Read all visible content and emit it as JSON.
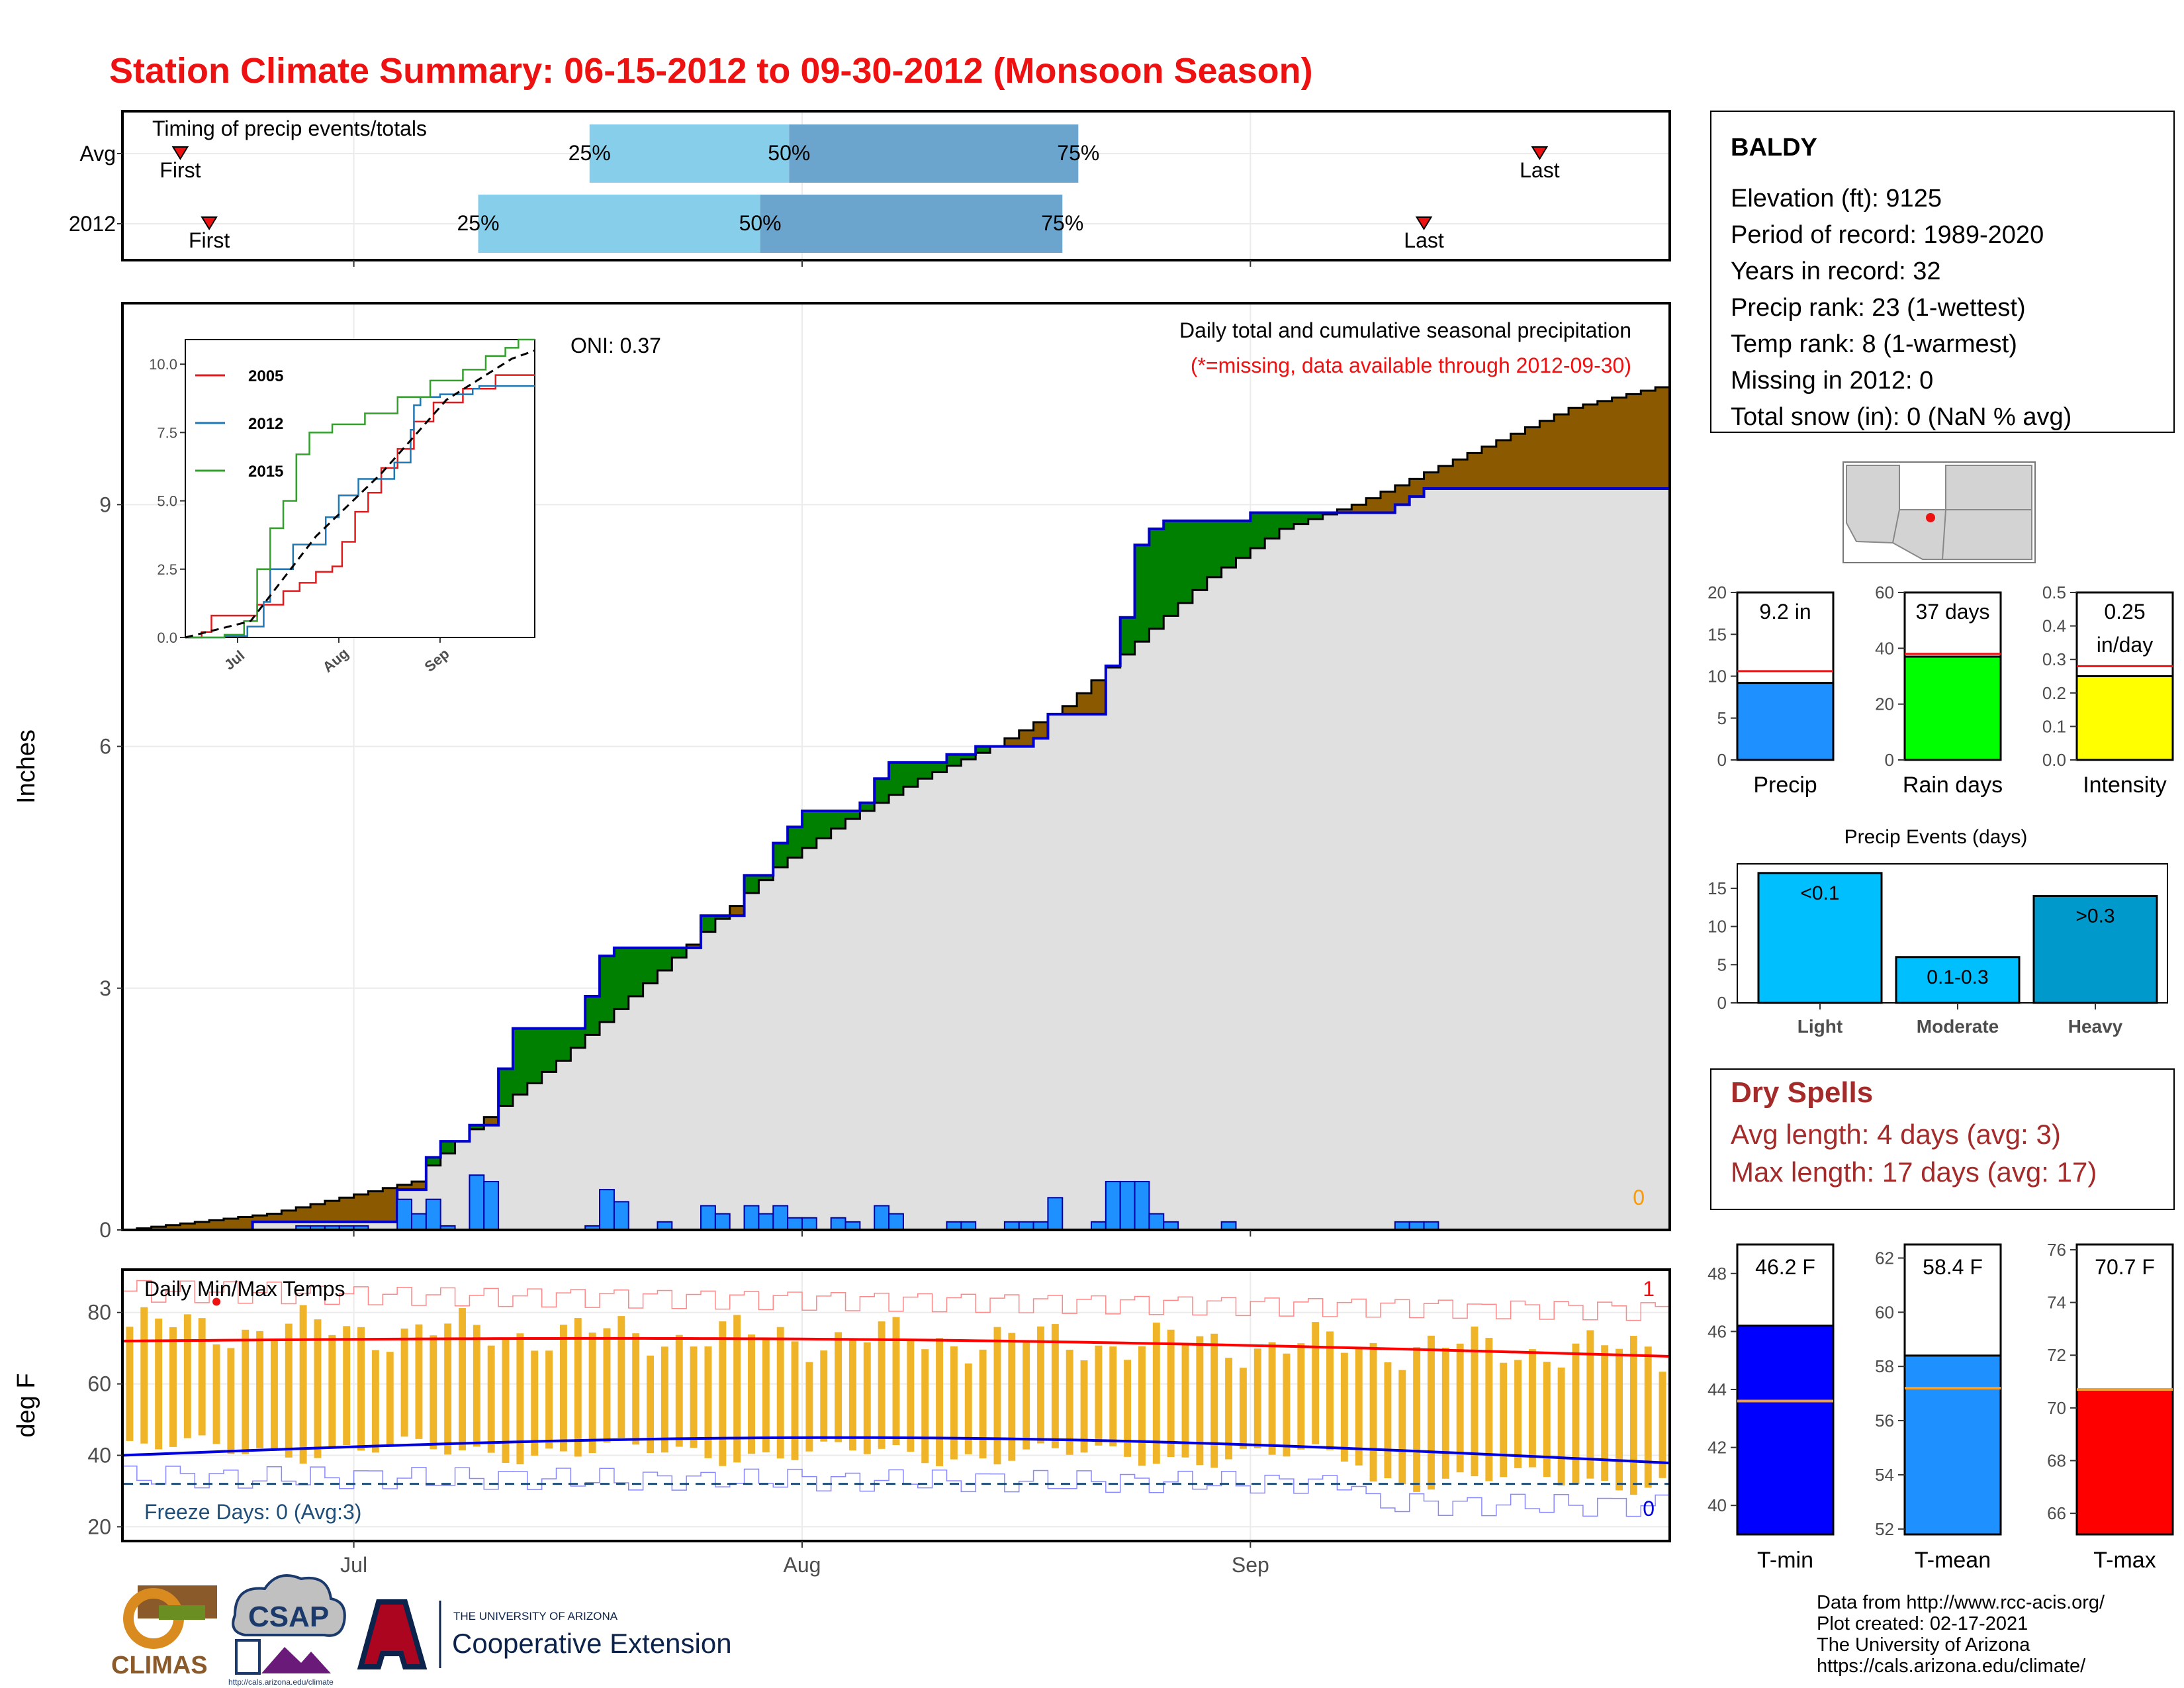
{
  "title": "Station Climate Summary: 06-15-2012 to 09-30-2012 (Monsoon Season)",
  "colors": {
    "title_red": "#ee1111",
    "pct_light": "#87ceeb",
    "pct_dark": "#6ba4cc",
    "above_brown": "#8b5a00",
    "below_green": "#008000",
    "cum_fill": "#e0e0e0",
    "bar_blue": "#1e90ff",
    "tmax_red": "#ff0000",
    "tmin_blue": "#0000dd",
    "range_gold": "#f0b428",
    "rain_green": "#00ff00",
    "intensity_yellow": "#ffff00",
    "event_cyan": "#00bfff",
    "event_mid": "#0099cc",
    "dry_red": "#a52a2a",
    "freeze_line": "#1f4e79"
  },
  "timing_panel": {
    "label": "Timing of precip events/totals",
    "rows": [
      {
        "name": "Avg",
        "first_label": "First",
        "last_label": "Last",
        "first_day": 4,
        "last_day": 98,
        "p25": 32.3,
        "p50": 46.1,
        "p75": 66.1,
        "p25_label": "25%",
        "p50_label": "50%",
        "p75_label": "75%"
      },
      {
        "name": "2012",
        "first_label": "First",
        "last_label": "Last",
        "first_day": 6,
        "last_day": 90,
        "p25": 24.6,
        "p50": 44.1,
        "p75": 65.0,
        "p25_label": "25%",
        "p50_label": "50%",
        "p75_label": "75%"
      }
    ]
  },
  "x_axis": {
    "start": "2012-06-15",
    "ticks": [
      {
        "label": "Jul",
        "day": 16
      },
      {
        "label": "Aug",
        "day": 47
      },
      {
        "label": "Sep",
        "day": 78
      }
    ]
  },
  "precip_panel": {
    "ylabel": "Inches",
    "y_ticks": [
      0,
      3,
      6,
      9
    ],
    "ylim": [
      0,
      11.5
    ],
    "oni_label": "ONI: 0.37",
    "caption": "Daily total and cumulative seasonal precipitation",
    "missing_note": "(*=missing, data available through 2012-09-30)",
    "missing_count": "0"
  },
  "chart_data": {
    "type": "area",
    "start": "2012-06-15",
    "cumulative_2012": [
      {
        "day": 0,
        "value": 0
      },
      {
        "day": 9,
        "value": 0.1
      },
      {
        "day": 19,
        "value": 0.5
      },
      {
        "day": 21,
        "value": 0.9
      },
      {
        "day": 22,
        "value": 1.1
      },
      {
        "day": 24,
        "value": 1.2
      },
      {
        "day": 24,
        "value": 1.3
      },
      {
        "day": 26,
        "value": 2.0
      },
      {
        "day": 26.5,
        "value": 2.5
      },
      {
        "day": 31,
        "value": 2.5
      },
      {
        "day": 32,
        "value": 2.9
      },
      {
        "day": 33,
        "value": 3.4
      },
      {
        "day": 34,
        "value": 3.5
      },
      {
        "day": 37,
        "value": 3.5
      },
      {
        "day": 40,
        "value": 3.9
      },
      {
        "day": 43,
        "value": 4.4
      },
      {
        "day": 45,
        "value": 4.8
      },
      {
        "day": 46,
        "value": 5.0
      },
      {
        "day": 47,
        "value": 5.2
      },
      {
        "day": 51,
        "value": 5.3
      },
      {
        "day": 52,
        "value": 5.6
      },
      {
        "day": 53,
        "value": 5.8
      },
      {
        "day": 57,
        "value": 5.9
      },
      {
        "day": 59,
        "value": 6.0
      },
      {
        "day": 63,
        "value": 6.1
      },
      {
        "day": 64,
        "value": 6.4
      },
      {
        "day": 67,
        "value": 6.4
      },
      {
        "day": 68,
        "value": 7.0
      },
      {
        "day": 69,
        "value": 7.6
      },
      {
        "day": 70,
        "value": 8.5
      },
      {
        "day": 71,
        "value": 8.7
      },
      {
        "day": 72,
        "value": 8.8
      },
      {
        "day": 76,
        "value": 8.8
      },
      {
        "day": 78,
        "value": 8.9
      },
      {
        "day": 88,
        "value": 9.0
      },
      {
        "day": 89,
        "value": 9.1
      },
      {
        "day": 90,
        "value": 9.2
      },
      {
        "day": 107,
        "value": 9.2
      }
    ],
    "daily_bars": [
      {
        "day": 12,
        "value": 0.05
      },
      {
        "day": 13,
        "value": 0.05
      },
      {
        "day": 14,
        "value": 0.05
      },
      {
        "day": 15,
        "value": 0.05
      },
      {
        "day": 16,
        "value": 0.05
      },
      {
        "day": 19,
        "value": 0.38
      },
      {
        "day": 20,
        "value": 0.2
      },
      {
        "day": 21,
        "value": 0.38
      },
      {
        "day": 22,
        "value": 0.05
      },
      {
        "day": 24,
        "value": 0.68
      },
      {
        "day": 25,
        "value": 0.6
      },
      {
        "day": 32,
        "value": 0.05
      },
      {
        "day": 33,
        "value": 0.5
      },
      {
        "day": 34,
        "value": 0.35
      },
      {
        "day": 37,
        "value": 0.1
      },
      {
        "day": 40,
        "value": 0.3
      },
      {
        "day": 41,
        "value": 0.2
      },
      {
        "day": 43,
        "value": 0.3
      },
      {
        "day": 44,
        "value": 0.2
      },
      {
        "day": 45,
        "value": 0.3
      },
      {
        "day": 46,
        "value": 0.15
      },
      {
        "day": 47,
        "value": 0.15
      },
      {
        "day": 49,
        "value": 0.15
      },
      {
        "day": 50,
        "value": 0.1
      },
      {
        "day": 52,
        "value": 0.3
      },
      {
        "day": 53,
        "value": 0.2
      },
      {
        "day": 57,
        "value": 0.1
      },
      {
        "day": 58,
        "value": 0.1
      },
      {
        "day": 61,
        "value": 0.1
      },
      {
        "day": 62,
        "value": 0.1
      },
      {
        "day": 63,
        "value": 0.1
      },
      {
        "day": 64,
        "value": 0.4
      },
      {
        "day": 67,
        "value": 0.1
      },
      {
        "day": 68,
        "value": 0.6
      },
      {
        "day": 69,
        "value": 0.6
      },
      {
        "day": 70,
        "value": 0.6
      },
      {
        "day": 71,
        "value": 0.2
      },
      {
        "day": 72,
        "value": 0.1
      },
      {
        "day": 76,
        "value": 0.1
      },
      {
        "day": 88,
        "value": 0.1
      },
      {
        "day": 89,
        "value": 0.1
      },
      {
        "day": 90,
        "value": 0.1
      }
    ],
    "cumulative_avg_steps": [
      {
        "day": 0,
        "value": 0
      },
      {
        "day": 10,
        "value": 0.2
      },
      {
        "day": 20,
        "value": 0.6
      },
      {
        "day": 21,
        "value": 0.8
      },
      {
        "day": 25,
        "value": 1.4
      },
      {
        "day": 30,
        "value": 2.1
      },
      {
        "day": 35,
        "value": 2.9
      },
      {
        "day": 40,
        "value": 3.7
      },
      {
        "day": 45,
        "value": 4.5
      },
      {
        "day": 50,
        "value": 5.1
      },
      {
        "day": 55,
        "value": 5.6
      },
      {
        "day": 60,
        "value": 6.0
      },
      {
        "day": 65,
        "value": 6.5
      },
      {
        "day": 70,
        "value": 7.3
      },
      {
        "day": 75,
        "value": 8.1
      },
      {
        "day": 80,
        "value": 8.7
      },
      {
        "day": 85,
        "value": 9.0
      },
      {
        "day": 90,
        "value": 9.4
      },
      {
        "day": 95,
        "value": 9.8
      },
      {
        "day": 100,
        "value": 10.2
      },
      {
        "day": 107,
        "value": 10.5
      }
    ]
  },
  "inset_chart": {
    "type": "line",
    "y_ticks": [
      "0.0",
      "2.5",
      "5.0",
      "7.5",
      "10.0"
    ],
    "x_ticks": [
      "Jul",
      "Aug",
      "Sep"
    ],
    "series": [
      {
        "name": "2005",
        "color": "#e31a1c"
      },
      {
        "name": "2012",
        "color": "#1f78b4"
      },
      {
        "name": "2015",
        "color": "#33a02c"
      }
    ]
  },
  "temp_panel": {
    "ylabel": "deg F",
    "label": "Daily Min/Max Temps",
    "y_ticks": [
      20,
      40,
      60,
      80
    ],
    "freeze_label": "Freeze Days: 0 (Avg:3)",
    "record_high_count": "1",
    "record_low_count": "0"
  },
  "station_info": {
    "name": "BALDY",
    "lines": [
      "Elevation (ft): 9125",
      "Period of record: 1989-2020",
      "Years in record: 32",
      "Precip rank: 23 (1-wettest)",
      "Temp rank: 8 (1-warmest)",
      "Missing in 2012: 0",
      "Total snow (in): 0 (NaN % avg)"
    ]
  },
  "summary_bars": [
    {
      "label": "Precip",
      "value_label": "9.2 in",
      "value": 9.2,
      "avg": 10.6,
      "ymax": 20,
      "ticks": [
        "0",
        "5",
        "10",
        "15",
        "20"
      ],
      "color": "#1e90ff"
    },
    {
      "label": "Rain days",
      "value_label": "37 days",
      "value": 37,
      "avg": 38,
      "ymax": 60,
      "ticks": [
        "0",
        "20",
        "40",
        "60"
      ],
      "color": "#00ff00"
    },
    {
      "label": "Intensity",
      "value_label": "0.25",
      "value_label2": "in/day",
      "value": 0.25,
      "avg": 0.28,
      "ymax": 0.5,
      "ticks": [
        "0.0",
        "0.1",
        "0.2",
        "0.3",
        "0.4",
        "0.5"
      ],
      "color": "#ffff00"
    }
  ],
  "precip_events": {
    "title": "Precip Events (days)",
    "y_ticks": [
      "0",
      "5",
      "10",
      "15"
    ],
    "bars": [
      {
        "category": "Light",
        "value_label": "<0.1",
        "value": 17,
        "color": "#00bfff"
      },
      {
        "category": "Moderate",
        "value_label": "0.1-0.3",
        "value": 6,
        "color": "#00bfff"
      },
      {
        "category": "Heavy",
        "value_label": ">0.3",
        "value": 14,
        "color": "#0099cc"
      }
    ]
  },
  "dry_spells": {
    "title": "Dry Spells",
    "avg_line": "Avg length: 4 days (avg: 3)",
    "max_line": "Max length: 17 days (avg: 17)"
  },
  "temp_bars": [
    {
      "label": "T-min",
      "value_label": "46.2 F",
      "value": 46.2,
      "avg": 43.6,
      "ymin": 39,
      "ymax": 49,
      "ticks": [
        "40",
        "42",
        "44",
        "46",
        "48"
      ],
      "color": "#0000ff"
    },
    {
      "label": "T-mean",
      "value_label": "58.4 F",
      "value": 58.4,
      "avg": 57.2,
      "ymin": 51.8,
      "ymax": 62.5,
      "ticks": [
        "52",
        "54",
        "56",
        "58",
        "60",
        "62"
      ],
      "color": "#1e90ff"
    },
    {
      "label": "T-max",
      "value_label": "70.7 F",
      "value": 70.7,
      "avg": 70.7,
      "ymin": 65.2,
      "ymax": 76.2,
      "ticks": [
        "66",
        "68",
        "70",
        "72",
        "74",
        "76"
      ],
      "color": "#ff0000"
    }
  ],
  "footer": {
    "data_source": "Data from http://www.rcc-acis.org/",
    "plot_created": "Plot created: 02-17-2021",
    "institution": "The University of Arizona",
    "url": "https://cals.arizona.edu/climate/"
  },
  "logos": {
    "climas_text": "CLIMAS",
    "csap_text": "CSAP",
    "csap_url": "http://cals.arizona.edu/climate",
    "ua_line1": "THE UNIVERSITY OF ARIZONA",
    "ua_line2": "Cooperative Extension"
  }
}
